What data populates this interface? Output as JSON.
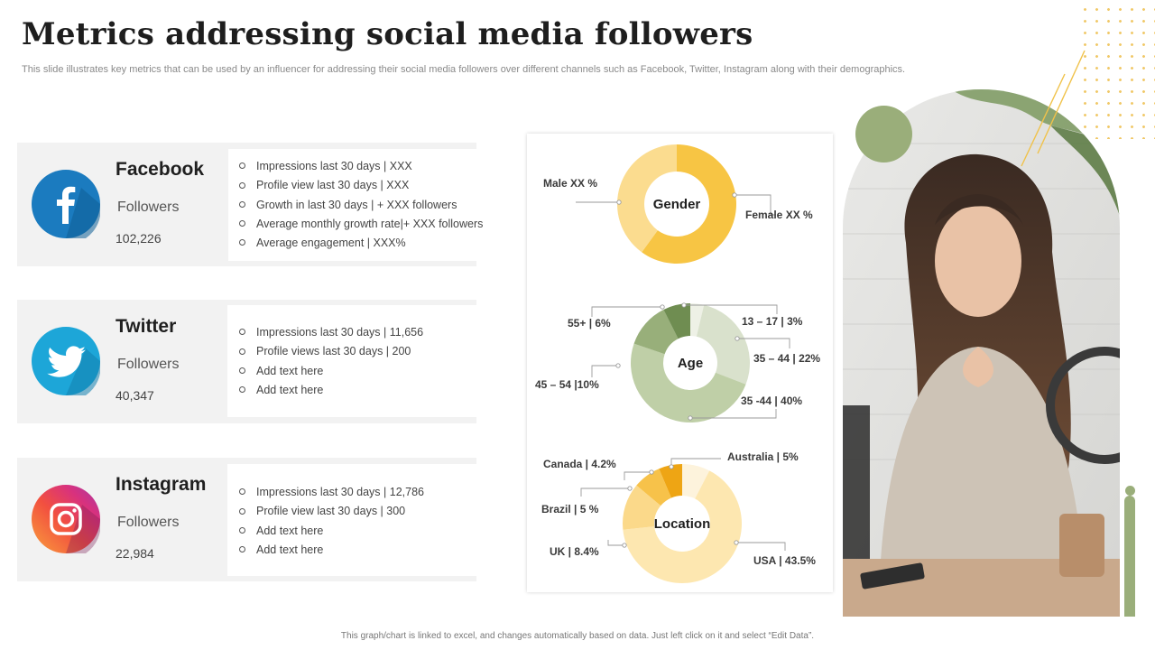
{
  "header": {
    "title": "Metrics addressing social media followers",
    "subtitle": "This slide illustrates key metrics that can be used by an influencer for addressing their social media followers over different channels such as Facebook, Twitter, Instagram along with their demographics."
  },
  "platforms": [
    {
      "name": "Facebook",
      "followers_label": "Followers",
      "followers_count": "102,226",
      "icon": "facebook-icon",
      "color": "#1b7bbf",
      "metrics": [
        "Impressions last   30 days | XXX",
        "Profile view  last 30 days | XXX",
        "Growth  in last  30 days   | + XXX  followers",
        "Average  monthly growth  rate|+ XXX  followers",
        "Average  engagement    | XXX%"
      ]
    },
    {
      "name": "Twitter",
      "followers_label": "Followers",
      "followers_count": "40,347",
      "icon": "twitter-icon",
      "color": "#1da6d8",
      "metrics": [
        "Impressions last 30 days | 11,656",
        "Profile views  last 30 days | 200",
        "Add text here",
        "Add text here"
      ]
    },
    {
      "name": "Instagram",
      "followers_label": "Followers",
      "followers_count": "22,984",
      "icon": "instagram-icon",
      "color": "#e8336a",
      "metrics": [
        "Impressions last   30 days | 12,786",
        "Profile view  last 30 days | 300",
        "Add text here",
        "Add text here"
      ]
    }
  ],
  "chart_data": [
    {
      "type": "pie",
      "title": "Gender",
      "categories": [
        "Female",
        "Male"
      ],
      "values": [
        60,
        40
      ],
      "labels": [
        "Female XX %",
        "Male XX %"
      ],
      "colors": [
        "#f7c544",
        "#fbdc8f"
      ]
    },
    {
      "type": "pie",
      "title": "Age",
      "categories": [
        "13 – 17",
        "35 – 44",
        "35 -44",
        "45 – 54",
        "55+"
      ],
      "values": [
        3,
        22,
        40,
        10,
        6
      ],
      "labels": [
        "13 – 17 | 3%",
        "35 – 44 | 22%",
        "35 -44 | 40%",
        "45 – 54 |10%",
        "55+ | 6%"
      ],
      "colors": [
        "#eef1e6",
        "#d9e1cc",
        "#bfcfa7",
        "#98af7a",
        "#6f8d51"
      ]
    },
    {
      "type": "pie",
      "title": "Location",
      "categories": [
        "Australia",
        "USA",
        "UK",
        "Brazil",
        "Canada"
      ],
      "values": [
        5,
        43.5,
        8.4,
        5,
        4.2
      ],
      "labels": [
        "Australia | 5%",
        "USA | 43.5%",
        "UK | 8.4%",
        "Brazil | 5 %",
        "Canada | 4.2%"
      ],
      "colors": [
        "#fdf3dc",
        "#fde7b0",
        "#fbd98a",
        "#f7c24a",
        "#eea514"
      ]
    }
  ],
  "footer": "This graph/chart is linked to excel, and changes automatically based on data. Just left click on it and select “Edit Data”."
}
